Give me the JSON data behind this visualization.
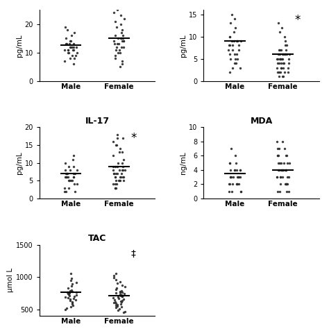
{
  "panels": [
    {
      "title": "",
      "ylabel": "pg/mL",
      "ylim": [
        0,
        25
      ],
      "yticks": [
        0,
        10,
        20
      ],
      "male_median": 12.5,
      "female_median": 15.0,
      "male_data": [
        19,
        18,
        17,
        16,
        15,
        14,
        14,
        13,
        13,
        13,
        13,
        12,
        12,
        12,
        12,
        12,
        11,
        11,
        11,
        11,
        11,
        10,
        10,
        10,
        9,
        9,
        8,
        8,
        7,
        6
      ],
      "female_data": [
        25,
        24,
        23,
        22,
        21,
        20,
        19,
        18,
        17,
        16,
        16,
        15,
        15,
        15,
        15,
        14,
        14,
        14,
        14,
        13,
        13,
        13,
        12,
        12,
        12,
        11,
        11,
        10,
        10,
        9,
        8,
        7,
        6,
        5
      ],
      "star": false,
      "star_pos": "female"
    },
    {
      "title": "",
      "ylabel": "pg/mL",
      "ylim": [
        0,
        16
      ],
      "yticks": [
        0,
        5,
        10,
        15
      ],
      "male_median": 9.0,
      "female_median": 6.0,
      "male_data": [
        15,
        14,
        13,
        12,
        11,
        10,
        10,
        9,
        9,
        9,
        9,
        9,
        8,
        8,
        8,
        8,
        7,
        7,
        7,
        6,
        6,
        6,
        5,
        5,
        5,
        4,
        4,
        3,
        3,
        2
      ],
      "female_data": [
        13,
        12,
        11,
        10,
        9,
        8,
        8,
        7,
        7,
        7,
        6,
        6,
        6,
        6,
        6,
        6,
        6,
        5,
        5,
        5,
        5,
        5,
        5,
        5,
        4,
        4,
        4,
        4,
        4,
        3,
        3,
        3,
        3,
        2,
        2,
        2,
        2,
        1,
        1,
        1,
        2,
        3,
        4,
        5,
        6,
        7
      ],
      "star": true,
      "star_pos": "female"
    },
    {
      "title": "IL-17",
      "ylabel": "pg/mL",
      "ylim": [
        0,
        20
      ],
      "yticks": [
        0,
        5,
        10,
        15,
        20
      ],
      "male_median": 7.0,
      "female_median": 9.0,
      "male_data": [
        12,
        11,
        10,
        9,
        9,
        8,
        8,
        8,
        7,
        7,
        7,
        7,
        7,
        6,
        6,
        6,
        6,
        6,
        6,
        5,
        5,
        5,
        5,
        4,
        4,
        3,
        3,
        2,
        2,
        2
      ],
      "female_data": [
        18,
        17,
        17,
        16,
        15,
        15,
        14,
        13,
        13,
        12,
        11,
        10,
        10,
        9,
        9,
        9,
        9,
        8,
        8,
        8,
        8,
        8,
        7,
        7,
        7,
        7,
        7,
        6,
        6,
        6,
        6,
        6,
        6,
        5,
        5,
        5,
        5,
        5,
        4,
        4,
        4,
        3,
        3,
        3
      ],
      "star": true,
      "star_pos": "female"
    },
    {
      "title": "MDA",
      "ylabel": "ng/mL",
      "ylim": [
        0,
        10
      ],
      "yticks": [
        0,
        2,
        4,
        6,
        8,
        10
      ],
      "male_median": 3.5,
      "female_median": 4.0,
      "male_data": [
        7,
        6,
        5,
        5,
        5,
        4,
        4,
        4,
        4,
        4,
        4,
        3,
        3,
        3,
        3,
        3,
        3,
        3,
        3,
        2,
        2,
        2,
        2,
        2,
        2,
        2,
        1,
        1,
        1,
        1
      ],
      "female_data": [
        8,
        8,
        7,
        7,
        6,
        6,
        6,
        5,
        5,
        5,
        5,
        5,
        4,
        4,
        4,
        4,
        4,
        4,
        4,
        4,
        3,
        3,
        3,
        3,
        3,
        3,
        2,
        2,
        2,
        2,
        2,
        1,
        1,
        1,
        1,
        6,
        5,
        4,
        3,
        2,
        7,
        6
      ],
      "star": false,
      "star_pos": "female"
    },
    {
      "title": "TAC",
      "ylabel": "μmol L",
      "ylim": [
        400,
        1500
      ],
      "yticks": [
        500,
        1000,
        1500
      ],
      "male_median": 760,
      "female_median": 710,
      "male_data": [
        1050,
        980,
        950,
        920,
        890,
        860,
        830,
        800,
        790,
        780,
        770,
        760,
        760,
        750,
        740,
        730,
        720,
        710,
        700,
        690,
        680,
        670,
        660,
        650,
        640,
        620,
        600,
        580,
        560,
        540,
        520,
        500
      ],
      "female_data": [
        1050,
        1020,
        990,
        960,
        930,
        900,
        870,
        850,
        830,
        810,
        790,
        780,
        770,
        760,
        750,
        740,
        730,
        720,
        710,
        700,
        700,
        690,
        680,
        670,
        660,
        650,
        640,
        630,
        620,
        610,
        600,
        590,
        580,
        570,
        560,
        550,
        540,
        530,
        510,
        490,
        470,
        455
      ],
      "star": false,
      "dagger": true,
      "dagger_pos": "female"
    }
  ],
  "dot_color": "#2a2a2a",
  "dot_size": 6,
  "line_color": "#000000",
  "background_color": "#ffffff"
}
